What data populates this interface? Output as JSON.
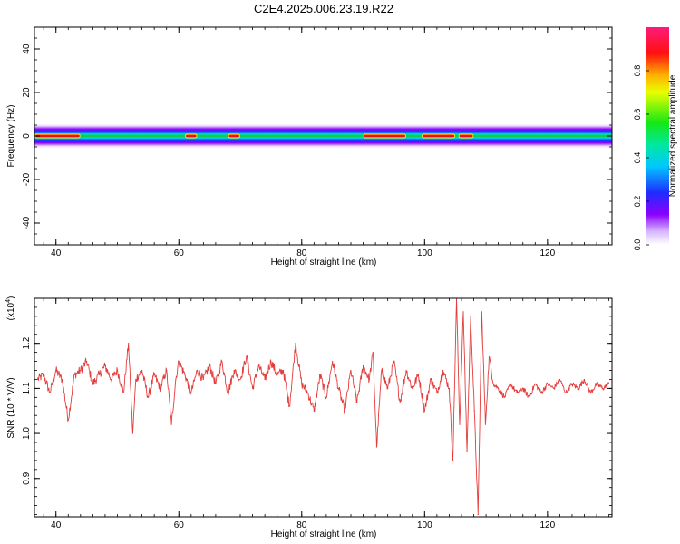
{
  "page_title": "C2E4.2025.006.23.19.R22",
  "colors": {
    "snr_line": "#e43b3b",
    "band_low": "#ffffff",
    "band_violet": "#8a00ff",
    "band_blue": "#1f2cff",
    "band_cyan": "#00d0e8",
    "band_green": "#14e814",
    "band_yellow": "#ffff00",
    "band_red": "#ff1010"
  },
  "chart_data": [
    {
      "type": "heatmap",
      "xlabel": "Height of straight line (km)",
      "ylabel": "Frequency (Hz)",
      "xlim": [
        36.5,
        130.5
      ],
      "ylim": [
        -50,
        50
      ],
      "xticks": [
        "40",
        "60",
        "80",
        "100",
        "120"
      ],
      "yticks": [
        "40",
        "20",
        "0",
        "-20",
        "-40"
      ],
      "band_center_hz": 0,
      "band_halfwidth_hz": 2,
      "high_amplitude_segments_km": [
        [
          36.5,
          44
        ],
        [
          61,
          63
        ],
        [
          68,
          70
        ],
        [
          90,
          97
        ],
        [
          99.5,
          105
        ],
        [
          105.5,
          108
        ]
      ],
      "colorbar": {
        "label": "Normalized spectral amplitude",
        "ticks": [
          "0.0",
          "0.2",
          "0.4",
          "0.6",
          "0.8"
        ],
        "range": [
          0,
          1
        ]
      }
    },
    {
      "type": "line",
      "xlabel": "Height of straight line (km)",
      "ylabel": "SNR (10 * V/V)",
      "y_multiplier": "(x10",
      "y_multiplier_exp": "4",
      "y_multiplier_close": ")",
      "xlim": [
        36.5,
        130.5
      ],
      "ylim": [
        0.815,
        1.3
      ],
      "xticks": [
        "40",
        "60",
        "80",
        "100",
        "120"
      ],
      "yticks": [
        "1.2",
        "1.1",
        "1.0",
        "0.9"
      ],
      "series": [
        {
          "x": [
            37,
            38,
            39,
            40,
            41,
            42,
            43,
            44,
            45,
            46,
            47,
            48,
            49,
            50,
            51,
            51.8,
            52.5,
            53,
            54,
            55,
            56,
            57,
            58,
            58.8,
            59.5,
            60,
            61,
            62,
            63,
            64,
            65,
            66,
            67,
            68,
            69,
            70,
            71,
            72,
            73,
            74,
            75,
            76,
            77,
            78,
            79,
            80,
            81,
            82,
            83,
            84,
            85,
            86,
            87,
            88,
            89,
            90,
            91,
            91.6,
            92.2,
            93,
            94,
            95,
            96,
            97,
            98,
            99,
            100,
            101,
            102,
            103,
            104,
            104.6,
            105.2,
            105.7,
            106.3,
            106.9,
            107.5,
            108.1,
            108.7,
            109.3,
            109.9,
            110.5,
            111.2,
            112,
            113,
            114,
            115,
            116,
            117,
            118,
            119,
            120,
            121,
            122,
            123,
            124,
            125,
            126,
            127,
            128,
            129,
            130
          ],
          "y": [
            1.12,
            1.13,
            1.09,
            1.14,
            1.12,
            1.03,
            1.13,
            1.14,
            1.16,
            1.11,
            1.13,
            1.15,
            1.12,
            1.14,
            1.09,
            1.2,
            1.0,
            1.12,
            1.14,
            1.08,
            1.13,
            1.1,
            1.14,
            1.02,
            1.12,
            1.16,
            1.13,
            1.09,
            1.14,
            1.12,
            1.15,
            1.11,
            1.16,
            1.09,
            1.14,
            1.12,
            1.17,
            1.1,
            1.15,
            1.12,
            1.16,
            1.13,
            1.14,
            1.06,
            1.2,
            1.11,
            1.09,
            1.05,
            1.13,
            1.08,
            1.16,
            1.1,
            1.05,
            1.14,
            1.07,
            1.15,
            1.12,
            1.18,
            0.97,
            1.14,
            1.1,
            1.16,
            1.07,
            1.14,
            1.1,
            1.13,
            1.05,
            1.12,
            1.09,
            1.14,
            1.1,
            0.94,
            1.3,
            1.02,
            1.27,
            0.96,
            1.26,
            1.05,
            0.82,
            1.27,
            1.02,
            1.17,
            1.11,
            1.1,
            1.08,
            1.11,
            1.09,
            1.1,
            1.08,
            1.11,
            1.09,
            1.11,
            1.1,
            1.12,
            1.09,
            1.11,
            1.1,
            1.12,
            1.09,
            1.11,
            1.1,
            1.11
          ]
        }
      ]
    }
  ]
}
